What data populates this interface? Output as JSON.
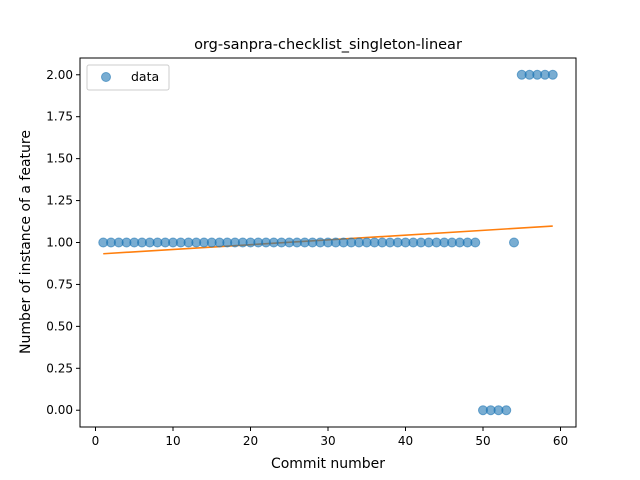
{
  "chart_data": {
    "type": "scatter",
    "title": "org-sanpra-checklist_singleton-linear",
    "xlabel": "Commit number",
    "ylabel": "Number of instance of a feature",
    "xlim": [
      -2,
      62
    ],
    "ylim": [
      -0.1,
      2.1
    ],
    "xticks": [
      0,
      10,
      20,
      30,
      40,
      50,
      60
    ],
    "yticks": [
      0.0,
      0.25,
      0.5,
      0.75,
      1.0,
      1.25,
      1.5,
      1.75,
      2.0
    ],
    "ytick_labels": [
      "0.00",
      "0.25",
      "0.50",
      "0.75",
      "1.00",
      "1.25",
      "1.50",
      "1.75",
      "2.00"
    ],
    "grid": false,
    "legend_position": "top-left",
    "series": [
      {
        "name": "data",
        "kind": "scatter",
        "color": "#1f77b4",
        "x": [
          1,
          2,
          3,
          4,
          5,
          6,
          7,
          8,
          9,
          10,
          11,
          12,
          13,
          14,
          15,
          16,
          17,
          18,
          19,
          20,
          21,
          22,
          23,
          24,
          25,
          26,
          27,
          28,
          29,
          30,
          31,
          32,
          33,
          34,
          35,
          36,
          37,
          38,
          39,
          40,
          41,
          42,
          43,
          44,
          45,
          46,
          47,
          48,
          49,
          50,
          51,
          52,
          53,
          54,
          55,
          56,
          57,
          58,
          59
        ],
        "y": [
          1,
          1,
          1,
          1,
          1,
          1,
          1,
          1,
          1,
          1,
          1,
          1,
          1,
          1,
          1,
          1,
          1,
          1,
          1,
          1,
          1,
          1,
          1,
          1,
          1,
          1,
          1,
          1,
          1,
          1,
          1,
          1,
          1,
          1,
          1,
          1,
          1,
          1,
          1,
          1,
          1,
          1,
          1,
          1,
          1,
          1,
          1,
          1,
          1,
          0,
          0,
          0,
          0,
          1,
          2,
          2,
          2,
          2,
          2
        ]
      },
      {
        "kind": "line",
        "color": "#ff7f0e",
        "x": [
          1,
          59
        ],
        "y": [
          0.933,
          1.098
        ]
      }
    ]
  }
}
